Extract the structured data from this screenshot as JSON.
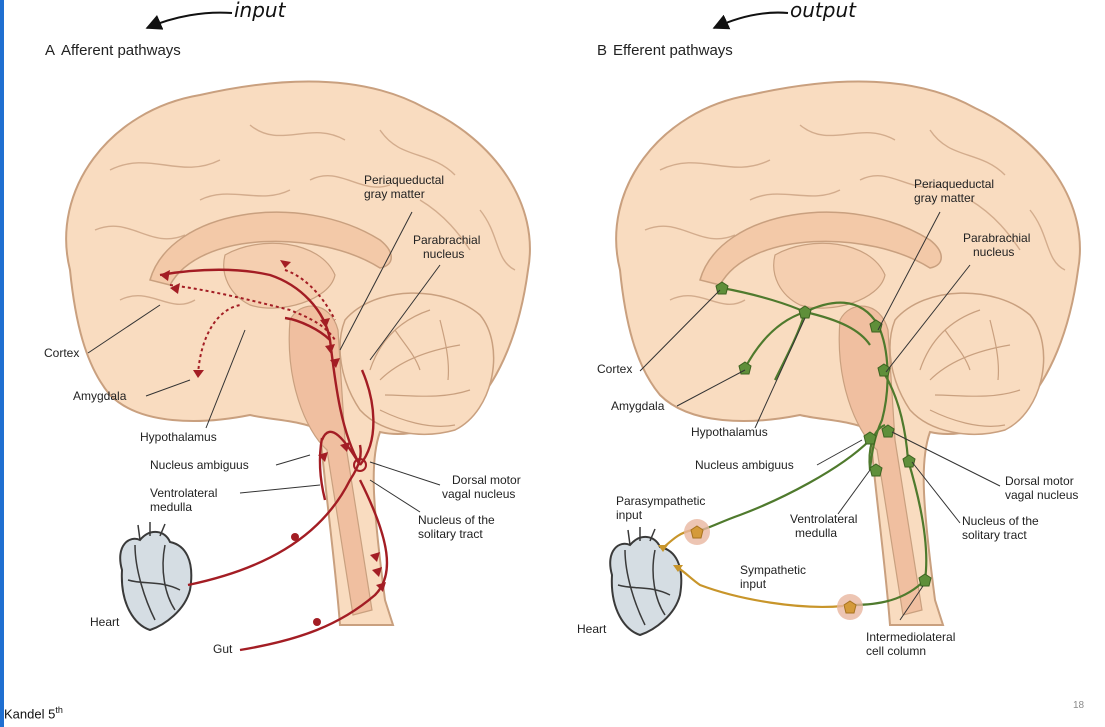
{
  "colors": {
    "accent_border": "#1f6fd1",
    "brain_fill": "#f9dcc0",
    "brain_stroke": "#c9a07f",
    "afferent": "#a31d24",
    "efferent": "#4f7a2d",
    "sympathetic": "#c8952a",
    "heart_fill": "#d5dde3"
  },
  "annotations": {
    "input": "input",
    "output": "output"
  },
  "panel_a": {
    "letter": "A",
    "title": "Afferent pathways",
    "labels": {
      "pag_1": "Periaqueductal",
      "pag_2": "gray matter",
      "pb_1": "Parabrachial",
      "pb_2": "nucleus",
      "cortex": "Cortex",
      "amygdala": "Amygdala",
      "hypothalamus": "Hypothalamus",
      "nuc_ambiguus": "Nucleus ambiguus",
      "vlm_1": "Ventrolateral",
      "vlm_2": "medulla",
      "dmv_1": "Dorsal motor",
      "dmv_2": "vagal nucleus",
      "nts_1": "Nucleus of the",
      "nts_2": "solitary tract",
      "heart": "Heart",
      "gut": "Gut"
    }
  },
  "panel_b": {
    "letter": "B",
    "title": "Efferent pathways",
    "labels": {
      "pag_1": "Periaqueductal",
      "pag_2": "gray matter",
      "pb_1": "Parabrachial",
      "pb_2": "nucleus",
      "cortex": "Cortex",
      "amygdala": "Amygdala",
      "hypothalamus": "Hypothalamus",
      "nuc_ambiguus": "Nucleus ambiguus",
      "dmv_1": "Dorsal motor",
      "dmv_2": "vagal nucleus",
      "para_1": "Parasympathetic",
      "para_2": "input",
      "vlm_1": "Ventrolateral",
      "vlm_2": "medulla",
      "nts_1": "Nucleus of the",
      "nts_2": "solitary tract",
      "symp_1": "Sympathetic",
      "symp_2": "input",
      "heart": "Heart",
      "iml_1": "Intermediolateral",
      "iml_2": "cell column"
    }
  },
  "footer": {
    "source": "Kandel 5",
    "source_sup": "th",
    "slide_number": "18"
  }
}
